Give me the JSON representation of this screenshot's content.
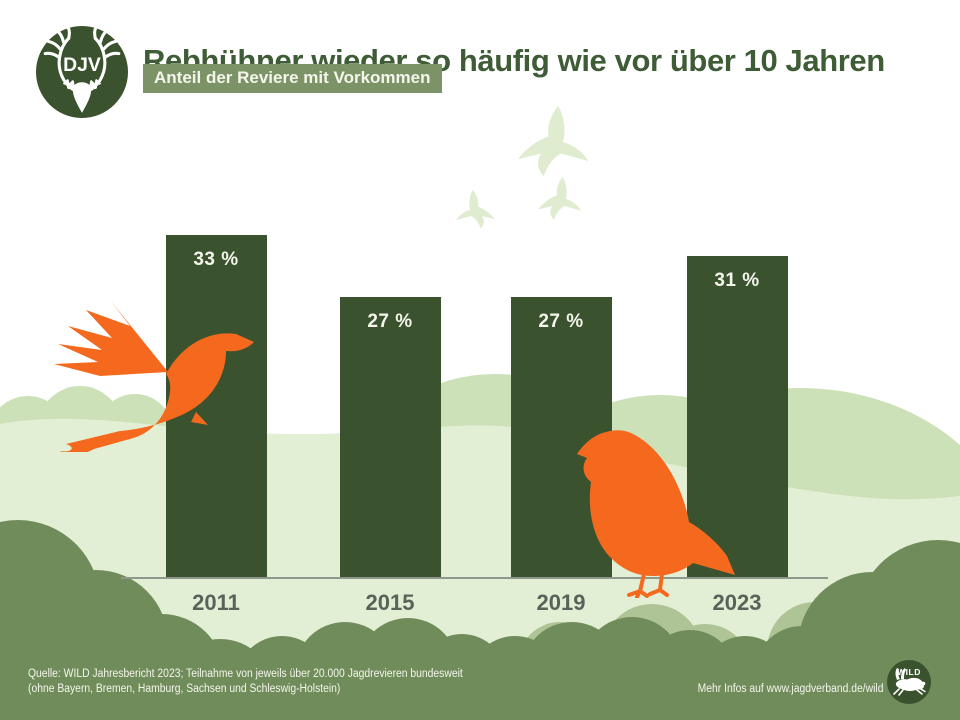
{
  "header": {
    "logo": {
      "text": "DJV"
    },
    "title": "Rebhühner wieder so häufig wie vor über 10 Jahren",
    "badge": "Anteil der Reviere mit Vorkommen"
  },
  "chart_data": {
    "type": "bar",
    "title": "Rebhühner wieder so häufig wie vor über 10 Jahren",
    "subtitle": "Anteil der Reviere mit Vorkommen",
    "categories": [
      "2011",
      "2015",
      "2019",
      "2023"
    ],
    "values": [
      33,
      27,
      27,
      31
    ],
    "value_labels": [
      "33 %",
      "27 %",
      "27 %",
      "31 %"
    ],
    "unit": "%",
    "ylim": [
      0,
      35
    ],
    "grid": false,
    "legend": "none",
    "bar_color": "#3a522e"
  },
  "footer": {
    "source_line1": "Quelle: WILD Jahresbericht 2023; Teilnahme von jeweils über 20.000 Jagdrevieren bundesweit",
    "source_line2": "(ohne Bayern, Bremen, Hamburg, Sachsen und Schleswig-Holstein)",
    "info": "Mehr Infos auf www.jagdverband.de/wild",
    "wild_logo": {
      "text": "WILD"
    }
  },
  "colors": {
    "dark_green": "#3a522e",
    "title_green": "#3e5c35",
    "badge_green": "#7c9367",
    "footer_green": "#708c5b",
    "bush_mid": "#afc496",
    "hill_green": "#cce1b7",
    "field_green": "#e3efd5",
    "bird_faint": "#dfeccf",
    "orange": "#f4691e",
    "axis_line": "#8e988c",
    "year_label": "#59635a",
    "label_light": "#f4f6ec"
  }
}
